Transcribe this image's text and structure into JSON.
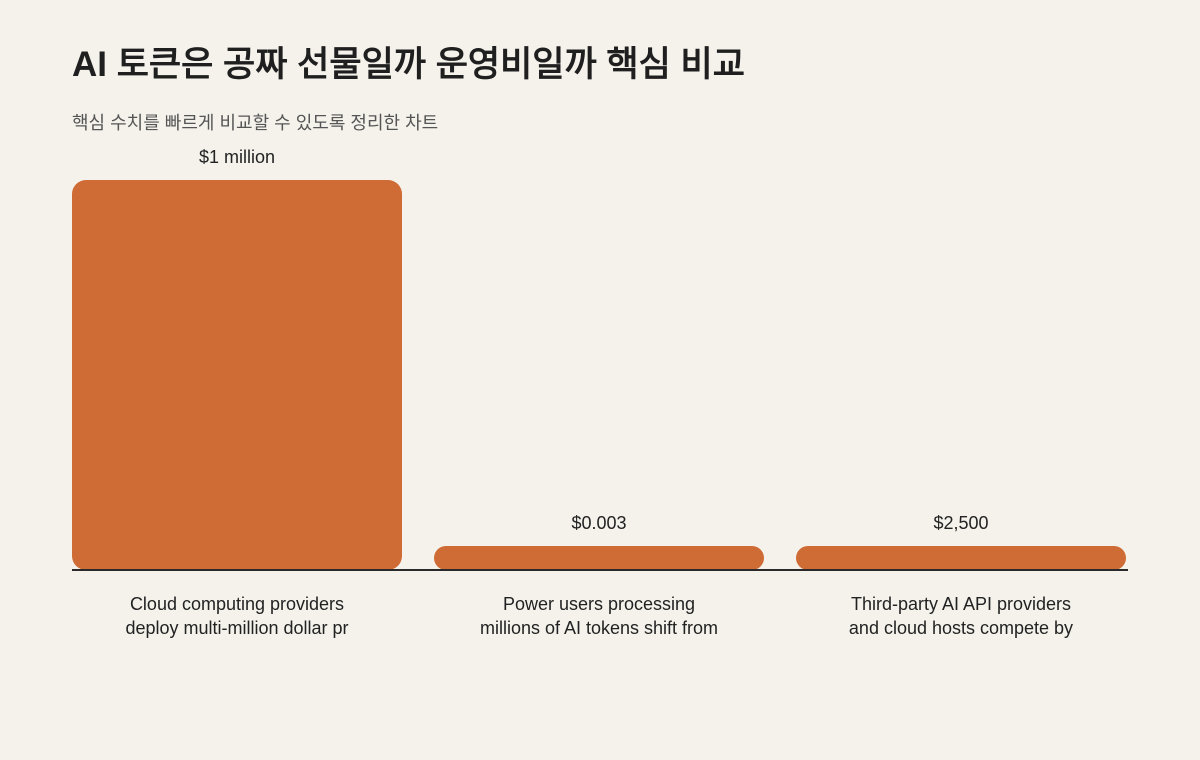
{
  "chart_data": {
    "type": "bar",
    "title": "AI 토큰은 공짜 선물일까 운영비일까 핵심 비교",
    "subtitle": "핵심 수치를 빠르게 비교할 수 있도록 정리한 차트",
    "categories": [
      "Cloud computing providers deploy multi-million dollar pr",
      "Power users processing millions of AI tokens shift from",
      "Third-party AI API providers and cloud hosts compete by"
    ],
    "values": [
      1000000,
      0.003,
      2500
    ],
    "value_labels": [
      "$1 million",
      "$0.003",
      "$2,500"
    ],
    "color": "#cf6b35"
  }
}
